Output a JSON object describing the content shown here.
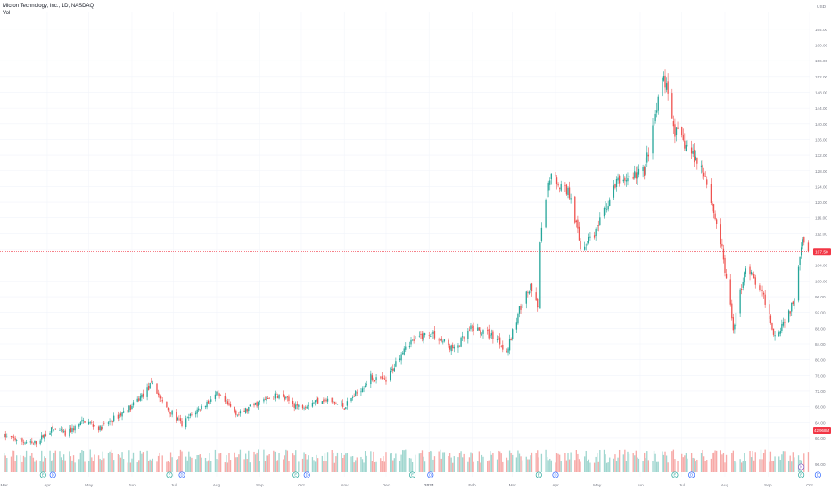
{
  "legend": {
    "symbol_line": "Micron Technology, Inc., 1D, NASDAQ",
    "volume_label": "Vol"
  },
  "currency": "USD",
  "colors": {
    "up": "#26a69a",
    "down": "#ef5350",
    "vol_up": "#9fd6cf",
    "vol_down": "#f7a9a7",
    "last_price_line": "#f23645",
    "axis_text": "#787b86",
    "event_badge": "#2962ff",
    "earnings_badge": "#26a69a"
  },
  "chart_data": {
    "type": "candlestick",
    "title": "Micron Technology, Inc., 1D, NASDAQ",
    "x_tick_labels": [
      "Mar",
      "Apr",
      "May",
      "Jun",
      "Jul",
      "Aug",
      "Sep",
      "Oct",
      "Nov",
      "Dec",
      "2024",
      "Feb",
      "Mar",
      "Apr",
      "May",
      "Jun",
      "Jul",
      "Aug",
      "Sep",
      "Oct"
    ],
    "y_tick_labels": [
      "164.00",
      "160.00",
      "156.00",
      "152.00",
      "148.00",
      "144.00",
      "140.00",
      "136.00",
      "132.00",
      "128.00",
      "124.00",
      "120.00",
      "116.00",
      "112.00",
      "108.00",
      "104.00",
      "100.00",
      "96.00",
      "92.00",
      "88.00",
      "84.00",
      "80.00",
      "76.00",
      "72.00",
      "68.00",
      "64.00",
      "60.00"
    ],
    "y_range": [
      57.5,
      166.0
    ],
    "last_price_label": "107.50",
    "last_volume_label": "42.968M",
    "volume_tick_label": "96.00",
    "price_series_trend": [
      {
        "date": "2023-03-01",
        "price": 60.5
      },
      {
        "date": "2023-03-22",
        "price": 58.5
      },
      {
        "date": "2023-04-05",
        "price": 62.5
      },
      {
        "date": "2023-04-14",
        "price": 61.0
      },
      {
        "date": "2023-04-28",
        "price": 64.5
      },
      {
        "date": "2023-05-09",
        "price": 62.5
      },
      {
        "date": "2023-05-19",
        "price": 65.0
      },
      {
        "date": "2023-06-01",
        "price": 68.0
      },
      {
        "date": "2023-06-16",
        "price": 74.0
      },
      {
        "date": "2023-06-23",
        "price": 69.0
      },
      {
        "date": "2023-07-07",
        "price": 63.5
      },
      {
        "date": "2023-07-14",
        "price": 66.0
      },
      {
        "date": "2023-08-01",
        "price": 71.0
      },
      {
        "date": "2023-08-17",
        "price": 66.0
      },
      {
        "date": "2023-08-31",
        "price": 69.0
      },
      {
        "date": "2023-09-14",
        "price": 71.0
      },
      {
        "date": "2023-09-29",
        "price": 68.0
      },
      {
        "date": "2023-10-16",
        "price": 70.0
      },
      {
        "date": "2023-11-01",
        "price": 68.0
      },
      {
        "date": "2023-11-20",
        "price": 75.5
      },
      {
        "date": "2023-12-01",
        "price": 74.5
      },
      {
        "date": "2023-12-15",
        "price": 84.0
      },
      {
        "date": "2024-01-02",
        "price": 87.0
      },
      {
        "date": "2024-01-19",
        "price": 82.5
      },
      {
        "date": "2024-02-01",
        "price": 88.0
      },
      {
        "date": "2024-02-19",
        "price": 85.5
      },
      {
        "date": "2024-02-26",
        "price": 82.0
      },
      {
        "date": "2024-03-08",
        "price": 95.0
      },
      {
        "date": "2024-03-14",
        "price": 98.0
      },
      {
        "date": "2024-03-20",
        "price": 92.5
      },
      {
        "date": "2024-03-21",
        "price": 110.0
      },
      {
        "date": "2024-03-28",
        "price": 127.0
      },
      {
        "date": "2024-04-12",
        "price": 122.0
      },
      {
        "date": "2024-04-19",
        "price": 108.5
      },
      {
        "date": "2024-05-01",
        "price": 113.0
      },
      {
        "date": "2024-05-15",
        "price": 125.0
      },
      {
        "date": "2024-06-04",
        "price": 128.0
      },
      {
        "date": "2024-06-18",
        "price": 152.0
      },
      {
        "date": "2024-06-26",
        "price": 138.0
      },
      {
        "date": "2024-07-05",
        "price": 134.0
      },
      {
        "date": "2024-07-17",
        "price": 128.0
      },
      {
        "date": "2024-07-29",
        "price": 110.0
      },
      {
        "date": "2024-08-07",
        "price": 88.0
      },
      {
        "date": "2024-08-16",
        "price": 104.0
      },
      {
        "date": "2024-08-30",
        "price": 95.0
      },
      {
        "date": "2024-09-06",
        "price": 86.0
      },
      {
        "date": "2024-09-19",
        "price": 94.0
      },
      {
        "date": "2024-09-26",
        "price": 112.0
      },
      {
        "date": "2024-09-30",
        "price": 107.5
      }
    ],
    "volume_spikes_relative": [
      {
        "date": "2023-06-22",
        "rel": 0.42
      },
      {
        "date": "2023-09-28",
        "rel": 0.38
      },
      {
        "date": "2023-12-21",
        "rel": 0.3
      },
      {
        "date": "2024-03-21",
        "rel": 0.72
      },
      {
        "date": "2024-06-27",
        "rel": 0.6
      },
      {
        "date": "2024-08-05",
        "rel": 0.4
      },
      {
        "date": "2024-09-26",
        "rel": 1.0
      }
    ]
  },
  "events": [
    {
      "date": "2023-03-29",
      "kind": "earnings",
      "label": "E"
    },
    {
      "date": "2023-04-05",
      "kind": "dividend",
      "label": "D"
    },
    {
      "date": "2023-06-28",
      "kind": "earnings",
      "label": "E"
    },
    {
      "date": "2023-07-07",
      "kind": "dividend",
      "label": "D"
    },
    {
      "date": "2023-09-27",
      "kind": "earnings",
      "label": "E"
    },
    {
      "date": "2023-10-05",
      "kind": "dividend",
      "label": "D"
    },
    {
      "date": "2023-12-20",
      "kind": "earnings",
      "label": "E"
    },
    {
      "date": "2024-01-02",
      "kind": "dividend",
      "label": "D"
    },
    {
      "date": "2024-03-20",
      "kind": "earnings",
      "label": "E"
    },
    {
      "date": "2024-04-01",
      "kind": "dividend",
      "label": "D"
    },
    {
      "date": "2024-06-26",
      "kind": "earnings",
      "label": "E"
    },
    {
      "date": "2024-07-08",
      "kind": "dividend",
      "label": "D"
    },
    {
      "date": "2024-09-25",
      "kind": "earnings",
      "label": "E"
    },
    {
      "date": "2024-09-25",
      "kind": "news",
      "label": "N"
    },
    {
      "date": "2024-10-07",
      "kind": "dividend",
      "label": "D"
    }
  ]
}
